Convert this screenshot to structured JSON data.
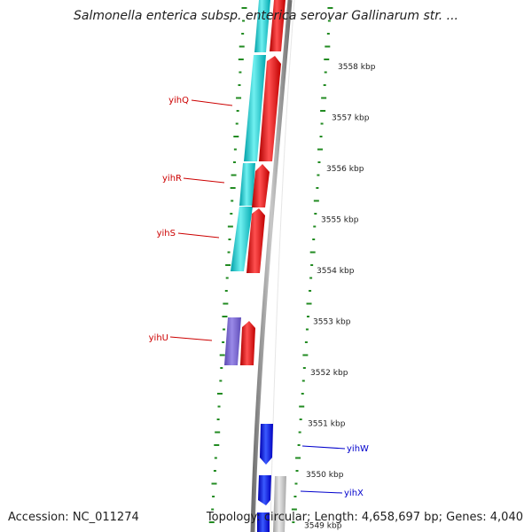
{
  "title": "Salmonella enterica subsp. enterica serovar Gallinarum str. ...",
  "footer": {
    "accession": "Accession: NC_011274",
    "topology": "Topology: circular; Length: 4,658,697 bp; Genes: 4,040"
  },
  "ticks": [
    "3558 kbp",
    "3557 kbp",
    "3556 kbp",
    "3555 kbp",
    "3554 kbp",
    "3553 kbp",
    "3552 kbp",
    "3551 kbp",
    "3550 kbp",
    "3549 kbp"
  ],
  "gene_labels": {
    "left": [
      "yihQ",
      "yihR",
      "yihS",
      "yihU"
    ],
    "right": [
      "yihW",
      "yihX"
    ]
  },
  "colors": {
    "forward_gene": "#ff0000",
    "reverse_gene": "#0000ff",
    "cog_cyan": "#00c8c8",
    "cog_purple": "#7a66cc",
    "cog_gray": "#c0c0c0",
    "backbone": "#909090",
    "gc_dots": "#228b22",
    "left_label": "#cc0000",
    "right_label": "#0000cc"
  }
}
